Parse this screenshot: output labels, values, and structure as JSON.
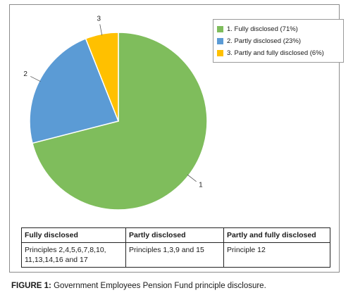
{
  "chart_data": {
    "type": "pie",
    "slices": [
      {
        "label": "1",
        "legend": "1. Fully disclosed (71%)",
        "value": 71,
        "color": "#7fbd5c"
      },
      {
        "label": "2",
        "legend": "2. Partly disclosed (23%)",
        "value": 23,
        "color": "#5b9bd5"
      },
      {
        "label": "3",
        "legend": "3. Partly and fully disclosed (6%)",
        "value": 6,
        "color": "#ffc000"
      }
    ],
    "legend_position": "top-right"
  },
  "table": {
    "headers": [
      "Fully disclosed",
      "Partly disclosed",
      "Partly and fully disclosed"
    ],
    "rows": [
      [
        "Principles 2,4,5,6,7,8,10, 11,13,14,16 and 17",
        "Principles 1,3,9 and 15",
        "Principle 12"
      ]
    ]
  },
  "caption": {
    "label": "FIGURE 1:",
    "text": " Government Employees Pension Fund principle disclosure."
  }
}
